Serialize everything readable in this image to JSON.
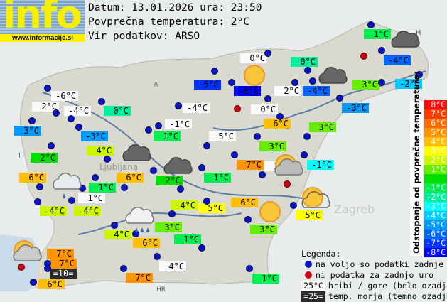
{
  "header": {
    "date_line": "Datum: 13.01.2026 ura: 23:50",
    "avg_line": "Povprečna temperatura: 2°C",
    "source_line": "Vir podatkov: ARSO"
  },
  "logo": {
    "text": "info",
    "url": "www.informacije.si"
  },
  "average_temperature_c": 2,
  "stations": [
    {
      "t": "1°C",
      "kind": "valley"
    },
    {
      "t": "-4°C",
      "kind": "valley"
    },
    {
      "t": "-2°C",
      "kind": "valley"
    },
    {
      "t": "3°C",
      "kind": "valley"
    },
    {
      "t": "-3°C",
      "kind": "valley"
    },
    {
      "t": "0°C",
      "kind": "mountain"
    },
    {
      "t": "0°C",
      "kind": "valley"
    },
    {
      "t": "-5°C",
      "kind": "valley"
    },
    {
      "t": "-8°C",
      "kind": "valley"
    },
    {
      "t": "2°C",
      "kind": "mountain"
    },
    {
      "t": "-4°C",
      "kind": "valley"
    },
    {
      "t": "0°C",
      "kind": "mountain"
    },
    {
      "t": "-6°C",
      "kind": "mountain"
    },
    {
      "t": "2°C",
      "kind": "mountain"
    },
    {
      "t": "-4°C",
      "kind": "mountain"
    },
    {
      "t": "0°C",
      "kind": "valley"
    },
    {
      "t": "-4°C",
      "kind": "mountain"
    },
    {
      "t": "-3°C",
      "kind": "valley"
    },
    {
      "t": "-3°C",
      "kind": "valley"
    },
    {
      "t": "-1°C",
      "kind": "mountain"
    },
    {
      "t": "1°C",
      "kind": "valley"
    },
    {
      "t": "5°C",
      "kind": "mountain"
    },
    {
      "t": "6°C",
      "kind": "valley"
    },
    {
      "t": "3°C",
      "kind": "valley"
    },
    {
      "t": "3°C",
      "kind": "valley"
    },
    {
      "t": "4°C",
      "kind": "valley"
    },
    {
      "t": "2°C",
      "kind": "valley"
    },
    {
      "t": "7°C",
      "kind": "valley"
    },
    {
      "t": "3°C",
      "kind": "mountain"
    },
    {
      "t": "-1°C",
      "kind": "valley"
    },
    {
      "t": "6°C",
      "kind": "valley"
    },
    {
      "t": "1°C",
      "kind": "valley"
    },
    {
      "t": "6°C",
      "kind": "valley"
    },
    {
      "t": "2°C",
      "kind": "valley"
    },
    {
      "t": "1°C",
      "kind": "valley"
    },
    {
      "t": "1°C",
      "kind": "mountain"
    },
    {
      "t": "4°C",
      "kind": "valley"
    },
    {
      "t": "4°C",
      "kind": "valley"
    },
    {
      "t": "4°C",
      "kind": "valley"
    },
    {
      "t": "5°C",
      "kind": "valley"
    },
    {
      "t": "6°C",
      "kind": "valley"
    },
    {
      "t": "5°C",
      "kind": "valley"
    },
    {
      "t": "3°C",
      "kind": "valley"
    },
    {
      "t": "3°C",
      "kind": "valley"
    },
    {
      "t": "4°C",
      "kind": "valley"
    },
    {
      "t": "6°C",
      "kind": "valley"
    },
    {
      "t": "1°C",
      "kind": "valley"
    },
    {
      "t": "4°C",
      "kind": "mountain"
    },
    {
      "t": "7°C",
      "kind": "valley"
    },
    {
      "t": "7°C",
      "kind": "valley"
    },
    {
      "t": "=10=",
      "kind": "sea"
    },
    {
      "t": "6°C",
      "kind": "valley"
    },
    {
      "t": "7°C",
      "kind": "valley"
    },
    {
      "t": "1°C",
      "kind": "valley"
    }
  ],
  "scale": {
    "title": "Odstopanje od povprečne temperature:",
    "steps": [
      {
        "label": "8°C",
        "color": "#ff0a0a"
      },
      {
        "label": "7°C",
        "color": "#ff3a00"
      },
      {
        "label": "6°C",
        "color": "#ff6a00"
      },
      {
        "label": "5°C",
        "color": "#ff9400"
      },
      {
        "label": "4°C",
        "color": "#ffbe00"
      },
      {
        "label": "3°C",
        "color": "#ffff00"
      },
      {
        "label": "2°C",
        "color": "#ccf500"
      },
      {
        "label": "1°C",
        "color": "#66ee00"
      },
      {
        "label": "",
        "color": "#00e000"
      },
      {
        "label": "-1°C",
        "color": "#00ee50"
      },
      {
        "label": "-2°C",
        "color": "#00f0a0"
      },
      {
        "label": "-3°C",
        "color": "#00ffff"
      },
      {
        "label": "-4°C",
        "color": "#00ccff"
      },
      {
        "label": "-5°C",
        "color": "#0099ff"
      },
      {
        "label": "-6°C",
        "color": "#0066ff"
      },
      {
        "label": "-7°C",
        "color": "#0033ff"
      },
      {
        "label": "-8°C",
        "color": "#0000ff"
      }
    ]
  },
  "legend": {
    "title": "Legenda:",
    "blue_dot": "na voljo so podatki zadnje ure",
    "red_dot": "ni podatka za zadnjo uro",
    "mountain_sample": "25°C",
    "mountain_text": "hribi / gore (belo ozadje)",
    "sea_sample": "=25=",
    "sea_text": "temp. morja (temno ozadje)"
  },
  "map_labels": {
    "city1": "Ljubljana",
    "city2": "Zagreb",
    "border_a": "A",
    "border_h": "H",
    "border_i": "I",
    "border_hr": "HR"
  },
  "colors": {
    "blue_dot": "#0a14c8",
    "red_dot": "#d00010",
    "mountain_bg": "#fafafa",
    "sea_bg": "#2b2b2b"
  }
}
